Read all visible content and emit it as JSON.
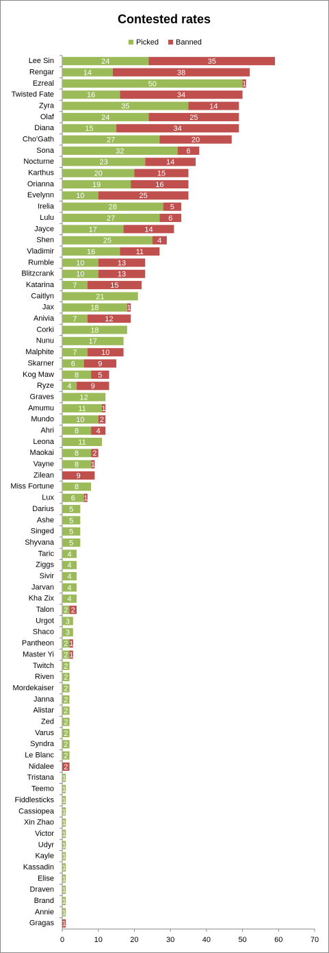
{
  "chart_data": {
    "type": "stacked-bar-horizontal",
    "title": "Contested rates",
    "categories": [
      "Lee Sin",
      "Rengar",
      "Ezreal",
      "Twisted Fate",
      "Zyra",
      "Olaf",
      "Diana",
      "Cho'Gath",
      "Sona",
      "Nocturne",
      "Karthus",
      "Orianna",
      "Evelynn",
      "Irelia",
      "Lulu",
      "Jayce",
      "Shen",
      "Vladimir",
      "Rumble",
      "Blitzcrank",
      "Katarina",
      "Caitlyn",
      "Jax",
      "Anivia",
      "Corki",
      "Nunu",
      "Malphite",
      "Skarner",
      "Kog Maw",
      "Ryze",
      "Graves",
      "Amumu",
      "Mundo",
      "Ahri",
      "Leona",
      "Maokai",
      "Vayne",
      "Zilean",
      "Miss Fortune",
      "Lux",
      "Darius",
      "Ashe",
      "Singed",
      "Shyvana",
      "Taric",
      "Ziggs",
      "Sivir",
      "Jarvan",
      "Kha Zix",
      "Talon",
      "Urgot",
      "Shaco",
      "Pantheon",
      "Master Yi",
      "Twitch",
      "Riven",
      "Mordekaiser",
      "Janna",
      "Alistar",
      "Zed",
      "Varus",
      "Syndra",
      "Le Blanc",
      "Nidalee",
      "Tristana",
      "Teemo",
      "Fiddlesticks",
      "Cassiopea",
      "Xin Zhao",
      "Victor",
      "Udyr",
      "Kayle",
      "Kassadin",
      "Elise",
      "Draven",
      "Brand",
      "Annie",
      "Gragas"
    ],
    "series": [
      {
        "name": "Picked",
        "color": "#9bbb59",
        "values": [
          24,
          14,
          50,
          16,
          35,
          24,
          15,
          27,
          32,
          23,
          20,
          19,
          10,
          28,
          27,
          17,
          25,
          16,
          10,
          10,
          7,
          21,
          18,
          7,
          18,
          17,
          7,
          6,
          8,
          4,
          12,
          11,
          10,
          8,
          11,
          8,
          8,
          null,
          8,
          6,
          5,
          5,
          5,
          5,
          4,
          4,
          4,
          4,
          4,
          2,
          3,
          3,
          2,
          2,
          2,
          2,
          2,
          2,
          2,
          2,
          2,
          2,
          2,
          null,
          1,
          1,
          1,
          1,
          1,
          1,
          1,
          1,
          1,
          1,
          1,
          1,
          1,
          null
        ]
      },
      {
        "name": "Banned",
        "color": "#c0504d",
        "values": [
          35,
          38,
          1,
          34,
          14,
          25,
          34,
          20,
          6,
          14,
          15,
          16,
          25,
          5,
          6,
          14,
          4,
          11,
          13,
          13,
          15,
          null,
          1,
          12,
          null,
          null,
          10,
          9,
          5,
          9,
          null,
          1,
          2,
          4,
          null,
          2,
          1,
          9,
          null,
          1,
          null,
          null,
          null,
          null,
          null,
          null,
          null,
          null,
          null,
          2,
          null,
          null,
          1,
          1,
          null,
          null,
          null,
          null,
          null,
          null,
          null,
          null,
          null,
          2,
          null,
          null,
          null,
          null,
          null,
          null,
          null,
          null,
          null,
          null,
          null,
          null,
          null,
          1
        ]
      }
    ],
    "xlim": [
      0,
      70
    ],
    "xticks": [
      0,
      10,
      20,
      30,
      40,
      50,
      60,
      70
    ],
    "legend": "top"
  }
}
